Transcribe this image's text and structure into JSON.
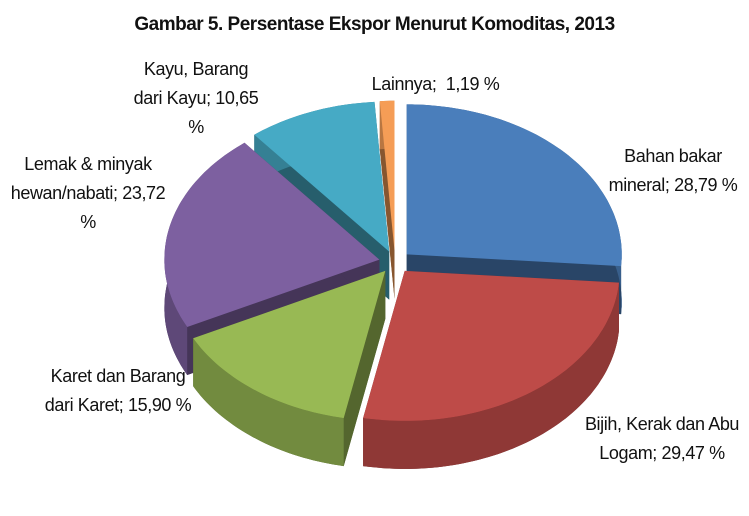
{
  "chart_data": {
    "type": "pie",
    "title": "Gambar 5. Persentase Ekspor Menurut Komoditas, 2013",
    "categories": [
      "Bahan bakar mineral;",
      "Bijih, Kerak dan Abu Logam;",
      "Karet dan Barang dari Karet;",
      "Lemak & minyak hewan/nabati;",
      "Kayu, Barang dari Kayu;",
      "Lainnya;"
    ],
    "values": [
      28.79,
      29.47,
      15.9,
      23.72,
      10.65,
      1.19
    ],
    "value_labels": [
      "28,79 %",
      "29,47 %",
      "15,90 %",
      "23,72 %",
      "10,65 %",
      "1,19 %"
    ],
    "colors": [
      "#4a7ebb",
      "#be4b48",
      "#98b954",
      "#7d60a0",
      "#46aac5",
      "#f59d56"
    ]
  }
}
